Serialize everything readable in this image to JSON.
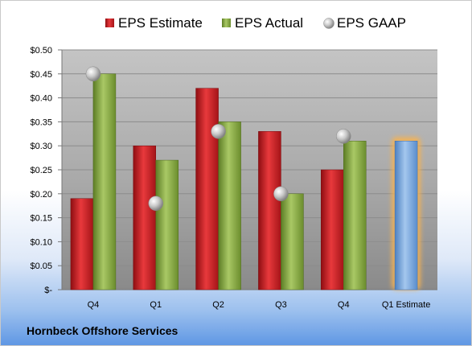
{
  "footer": {
    "company": "Hornbeck Offshore Services"
  },
  "colors": {
    "estimate": "#d9252a",
    "actual": "#8db244",
    "gaap": "#bcbcbc",
    "forecast": "#7aa7dc",
    "forecast_glow": "#f5b253"
  },
  "chart_data": {
    "type": "bar",
    "title": "",
    "xlabel": "",
    "ylabel": "",
    "categories": [
      "Q4",
      "Q1",
      "Q2",
      "Q3",
      "Q4",
      "Q1 Estimate"
    ],
    "ylim": [
      0,
      0.5
    ],
    "yticks": [
      0,
      0.05,
      0.1,
      0.15,
      0.2,
      0.25,
      0.3,
      0.35,
      0.4,
      0.45,
      0.5
    ],
    "ytick_labels": [
      "$-",
      "$0.05",
      "$0.10",
      "$0.15",
      "$0.20",
      "$0.25",
      "$0.30",
      "$0.35",
      "$0.40",
      "$0.45",
      "$0.50"
    ],
    "grid": true,
    "legend_position": "top",
    "series": [
      {
        "name": "EPS Estimate",
        "kind": "bar",
        "values": [
          0.19,
          0.3,
          0.42,
          0.33,
          0.25,
          null
        ]
      },
      {
        "name": "EPS Actual",
        "kind": "bar",
        "values": [
          0.45,
          0.27,
          0.35,
          0.2,
          0.31,
          null
        ]
      },
      {
        "name": "EPS GAAP",
        "kind": "marker",
        "values": [
          0.45,
          0.18,
          0.33,
          0.2,
          0.32,
          null
        ]
      }
    ],
    "forecast": {
      "category": "Q1 Estimate",
      "value": 0.31
    }
  }
}
